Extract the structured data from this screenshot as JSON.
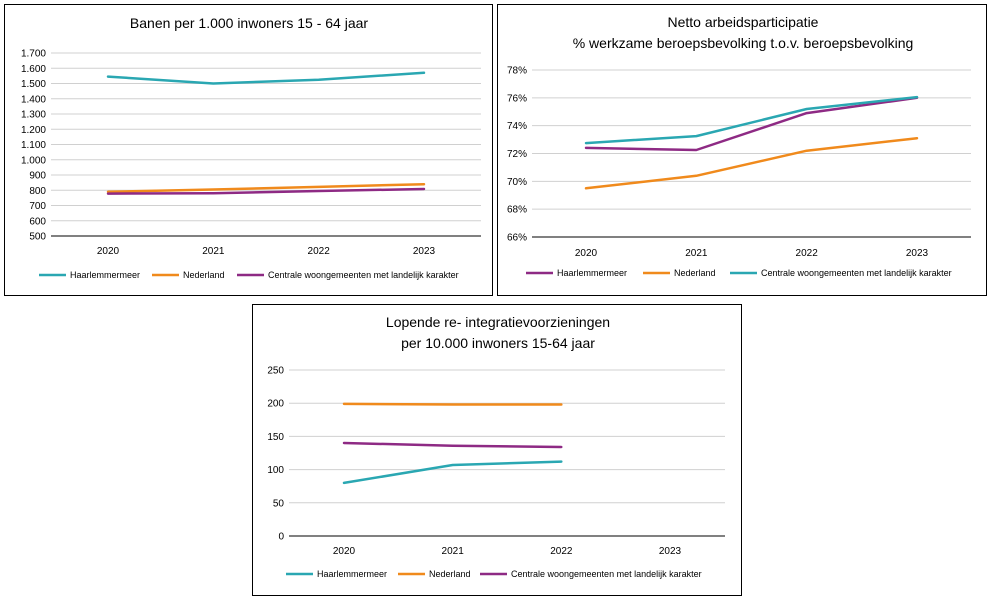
{
  "chart_data": [
    {
      "type": "line",
      "title_lines": [
        "Banen per 1.000 inwoners 15 - 64 jaar"
      ],
      "categories": [
        "2020",
        "2021",
        "2022",
        "2023"
      ],
      "ylim": [
        500,
        1700
      ],
      "yticks": [
        500,
        600,
        700,
        800,
        900,
        1000,
        1100,
        1200,
        1300,
        1400,
        1500,
        1600,
        1700
      ],
      "ytick_labels": [
        "500",
        "600",
        "700",
        "800",
        "900",
        "1.000",
        "1.100",
        "1.200",
        "1.300",
        "1.400",
        "1.500",
        "1.600",
        "1.700"
      ],
      "grid": true,
      "legend": "bottom",
      "series": [
        {
          "name": "Haarlemmermeer",
          "color": "#2aa7b2",
          "values": [
            1545,
            1500,
            1525,
            1570
          ]
        },
        {
          "name": "Nederland",
          "color": "#f08a1c",
          "values": [
            790,
            805,
            822,
            840
          ]
        },
        {
          "name": "Centrale woongemeenten met landelijk karakter",
          "color": "#8e2a84",
          "values": [
            778,
            780,
            795,
            808
          ]
        }
      ]
    },
    {
      "type": "line",
      "title_lines": [
        "Netto arbeidsparticipatie",
        "% werkzame beroepsbevolking  t.o.v. beroepsbevolking"
      ],
      "categories": [
        "2020",
        "2021",
        "2022",
        "2023"
      ],
      "ylim": [
        66,
        78
      ],
      "yticks": [
        66,
        68,
        70,
        72,
        74,
        76,
        78
      ],
      "ytick_labels": [
        "66%",
        "68%",
        "70%",
        "72%",
        "74%",
        "76%",
        "78%"
      ],
      "grid": true,
      "legend": "bottom",
      "series": [
        {
          "name": "Haarlemmermeer",
          "color": "#8e2a84",
          "values": [
            72.4,
            72.25,
            74.9,
            76.0
          ]
        },
        {
          "name": "Nederland",
          "color": "#f08a1c",
          "values": [
            69.5,
            70.4,
            72.2,
            73.1
          ]
        },
        {
          "name": "Centrale woongemeenten met landelijk karakter",
          "color": "#2aa7b2",
          "values": [
            72.75,
            73.25,
            75.2,
            76.05
          ]
        }
      ]
    },
    {
      "type": "line",
      "title_lines": [
        "Lopende re- integratievoorzieningen",
        "per 10.000 inwoners 15-64 jaar"
      ],
      "categories": [
        "2020",
        "2021",
        "2022",
        "2023"
      ],
      "ylim": [
        0,
        250
      ],
      "yticks": [
        0,
        50,
        100,
        150,
        200,
        250
      ],
      "ytick_labels": [
        "0",
        "50",
        "100",
        "150",
        "200",
        "250"
      ],
      "grid": true,
      "legend": "bottom",
      "series": [
        {
          "name": "Haarlemmermeer",
          "color": "#2aa7b2",
          "values": [
            80,
            107,
            112,
            null
          ]
        },
        {
          "name": "Nederland",
          "color": "#f08a1c",
          "values": [
            199,
            198,
            198,
            null
          ]
        },
        {
          "name": "Centrale woongemeenten met landelijk karakter",
          "color": "#8e2a84",
          "values": [
            140,
            136,
            134,
            null
          ]
        }
      ]
    }
  ]
}
